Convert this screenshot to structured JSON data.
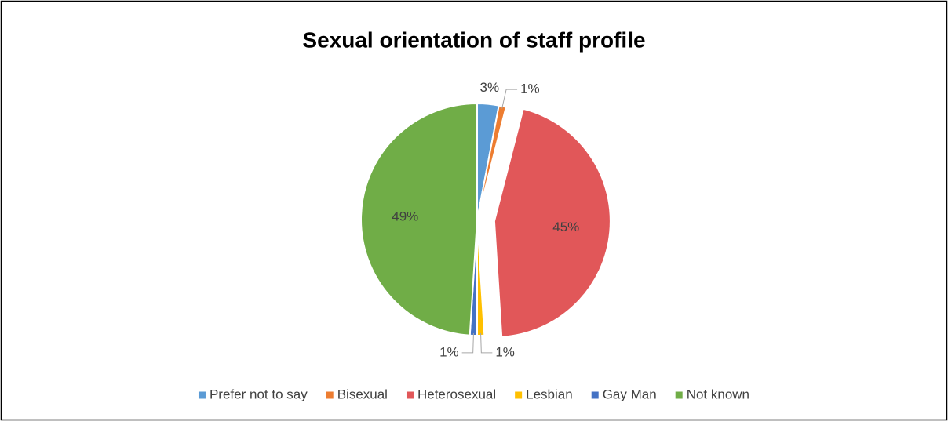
{
  "chart_data": {
    "type": "pie",
    "title": "Sexual orientation of staff profile",
    "categories": [
      "Prefer not to say",
      "Bisexual",
      "Heterosexual",
      "Lesbian",
      "Gay Man",
      "Not known"
    ],
    "values": [
      3,
      1,
      45,
      1,
      1,
      49
    ],
    "value_labels": [
      "3%",
      "1%",
      "45%",
      "1%",
      "1%",
      "49%"
    ],
    "colors": [
      "#5b9bd5",
      "#ed7d31",
      "#e15759",
      "#ffc000",
      "#4472c4",
      "#70ad47"
    ],
    "exploded": "Heterosexual",
    "legend": "bottom"
  }
}
